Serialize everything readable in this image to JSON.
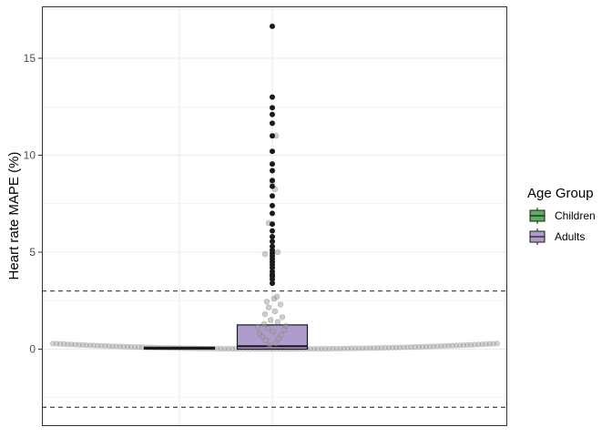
{
  "chart_data": {
    "type": "boxplot",
    "title": "",
    "xlabel": "",
    "ylabel": "Heart rate MAPE (%)",
    "ylim": [
      -3.9,
      17.5
    ],
    "yticks": [
      0,
      5,
      10,
      15
    ],
    "ytick_labels": [
      "0",
      "5",
      "10",
      "15"
    ],
    "reference_lines": [
      3,
      -3
    ],
    "grid": true,
    "legend": {
      "title": "Age Group",
      "placement": "right",
      "entries": [
        {
          "label": "Children",
          "color": "#5cad5c"
        },
        {
          "label": "Adults",
          "color": "#b09ccc"
        }
      ]
    },
    "groups": [
      {
        "name": "Children",
        "color": "#5cad5c",
        "q1": 0.0,
        "median": 0.05,
        "q3": 0.1,
        "outliers": []
      },
      {
        "name": "Adults",
        "color": "#b09ccc",
        "q1": 0.0,
        "median": 0.15,
        "q3": 1.25,
        "outliers": [
          3.4,
          3.6,
          3.75,
          3.85,
          4.0,
          4.2,
          4.35,
          4.5,
          4.65,
          4.8,
          4.95,
          5.1,
          5.3,
          5.55,
          5.8,
          6.1,
          6.45,
          7.0,
          7.4,
          7.9,
          8.4,
          8.7,
          9.2,
          9.55,
          10.2,
          11.0,
          11.65,
          12.1,
          12.45,
          13.0,
          16.65
        ]
      }
    ],
    "jitter_points": [
      0.2,
      0.3,
      0.45,
      0.55,
      0.65,
      0.75,
      0.8,
      0.9,
      1.0,
      1.05,
      1.15,
      1.2,
      1.3,
      1.4,
      1.5,
      1.65,
      1.8,
      1.95,
      2.15,
      2.3,
      2.45,
      2.6,
      2.7,
      4.9,
      5.0,
      6.5,
      8.25,
      8.6,
      11.0
    ]
  },
  "colors": {
    "panel_border": "#333333",
    "grid": "#ebebeb",
    "reference_line": "#4d4d4d",
    "outlier": "#1a1a1a",
    "jitter": "#9e9e9e"
  }
}
